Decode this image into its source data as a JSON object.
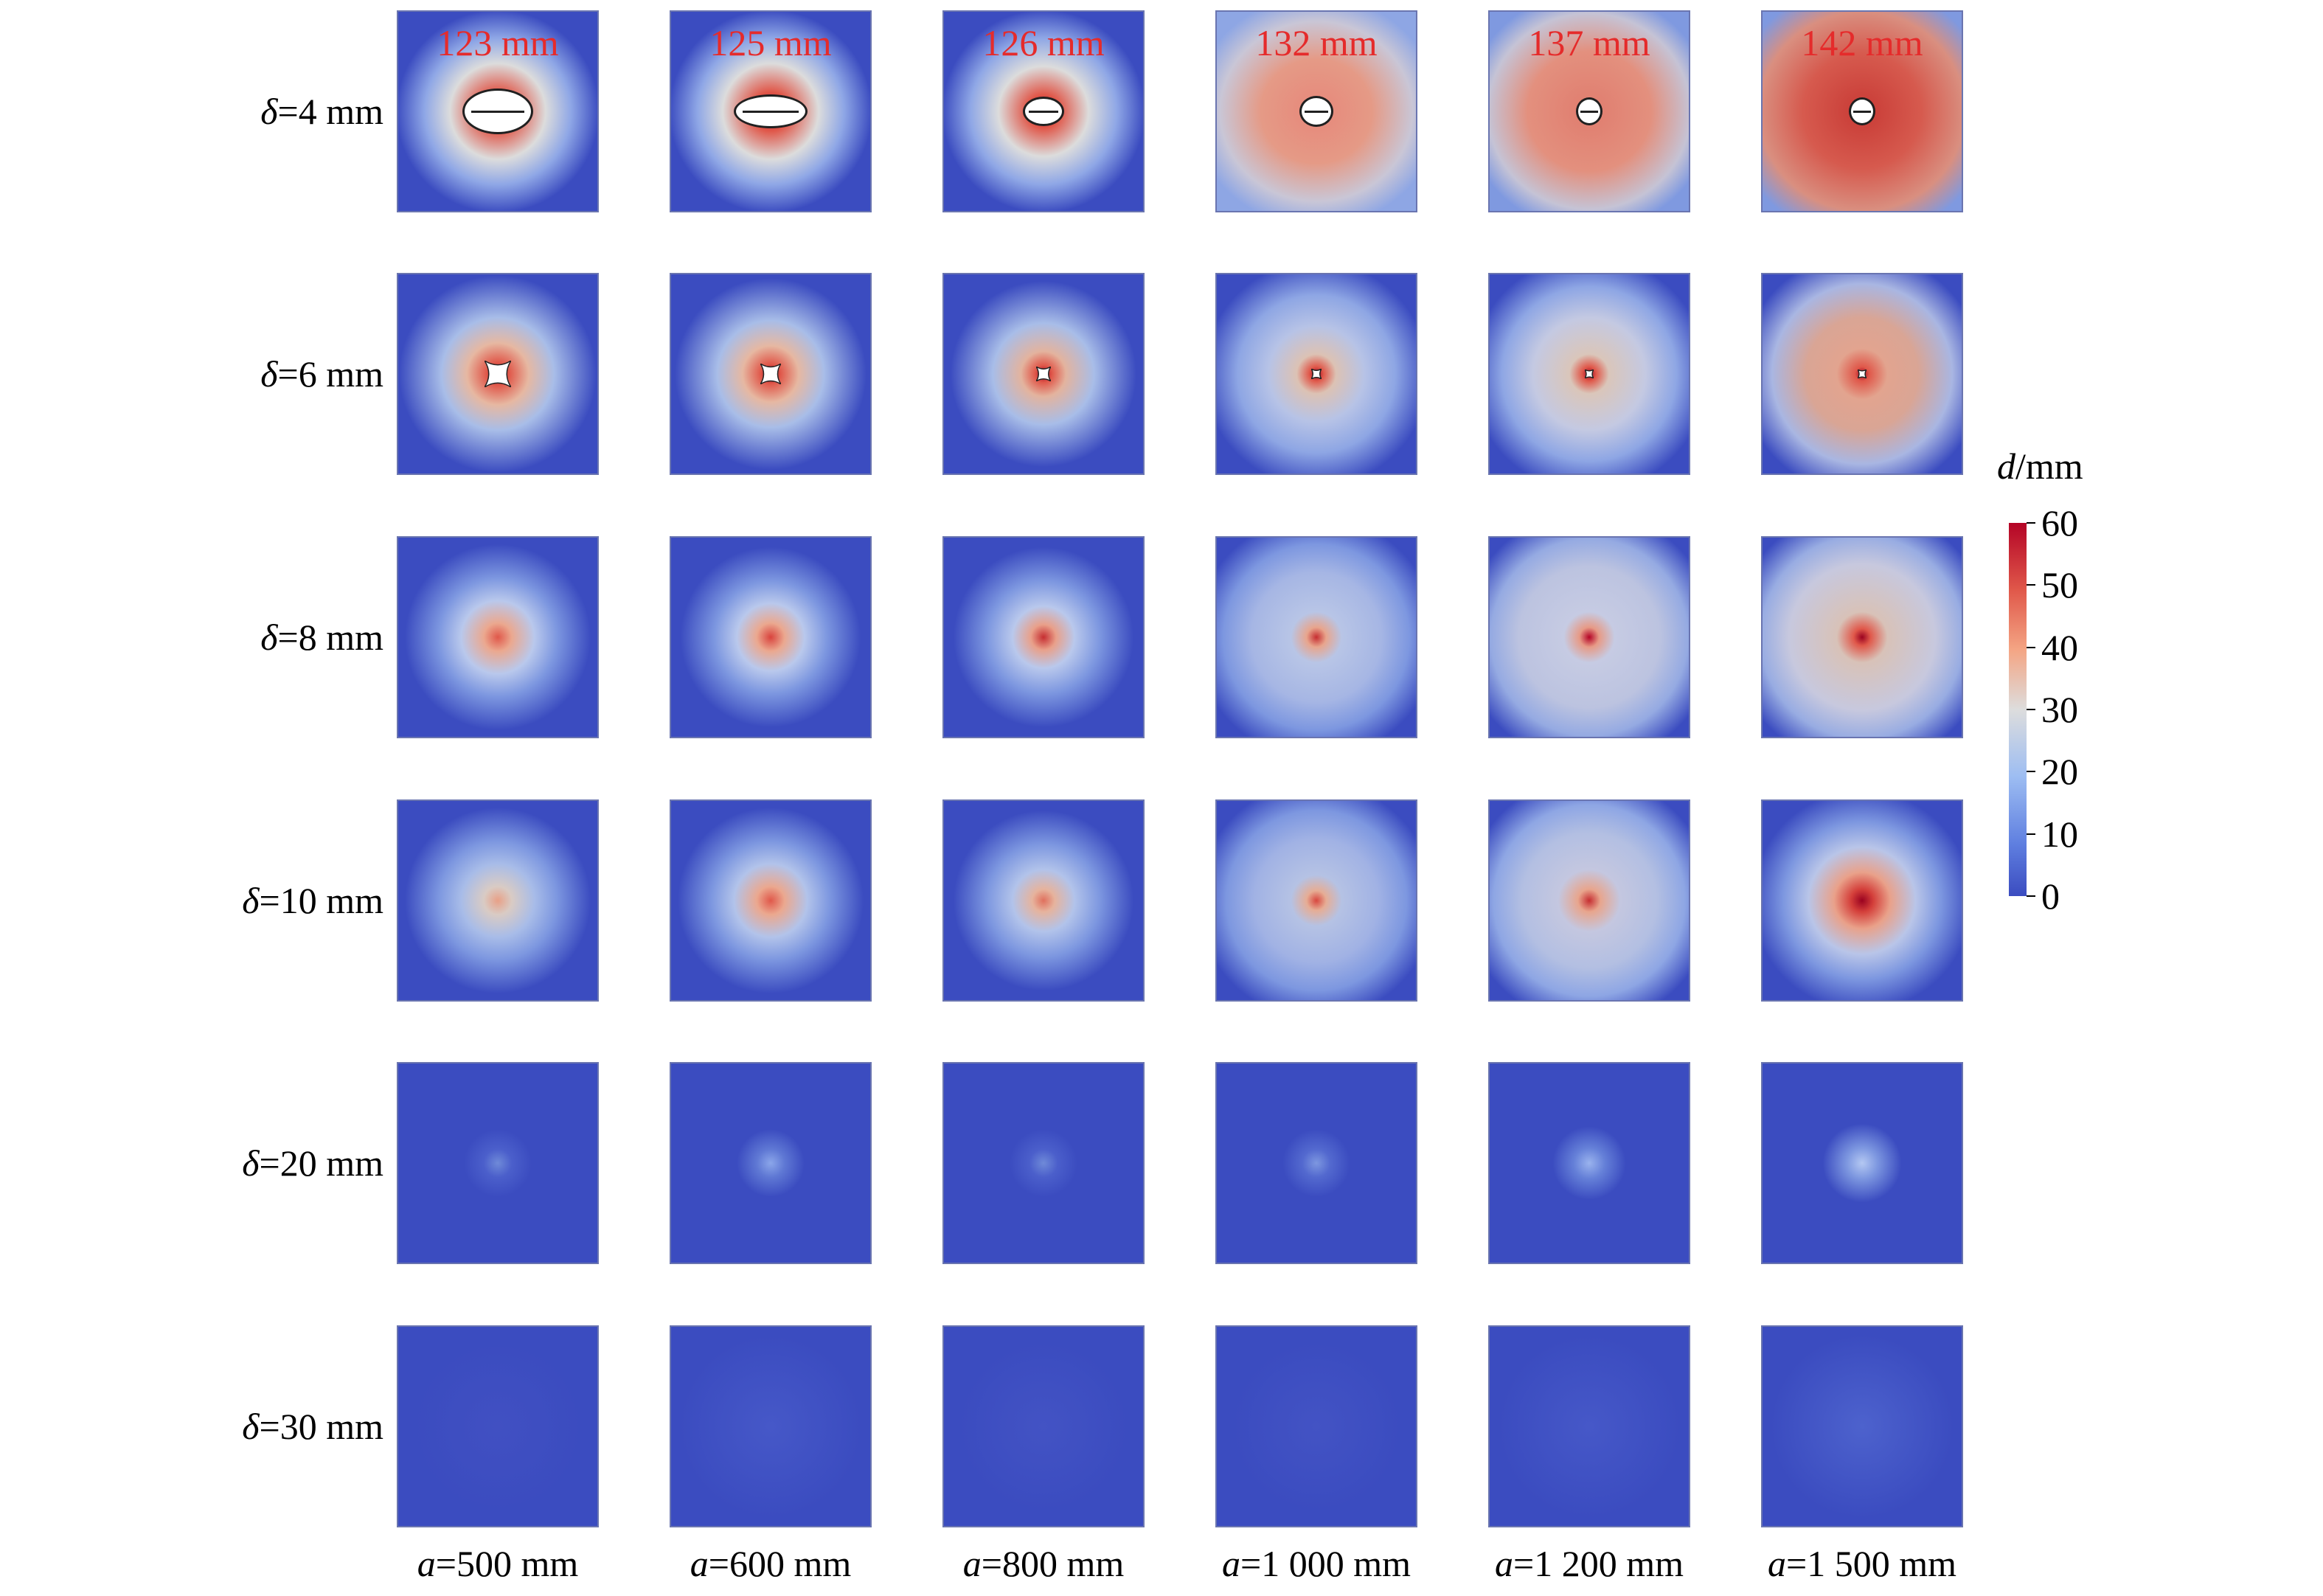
{
  "row_labels": [
    {
      "symbol": "δ",
      "rest": "=4 mm"
    },
    {
      "symbol": "δ",
      "rest": "=6 mm"
    },
    {
      "symbol": "δ",
      "rest": "=8 mm"
    },
    {
      "symbol": "δ",
      "rest": "=10 mm"
    },
    {
      "symbol": "δ",
      "rest": "=20 mm"
    },
    {
      "symbol": "δ",
      "rest": "=30 mm"
    }
  ],
  "column_labels": [
    {
      "symbol": "a",
      "rest": "=500 mm"
    },
    {
      "symbol": "a",
      "rest": "=600 mm"
    },
    {
      "symbol": "a",
      "rest": "=800 mm"
    },
    {
      "symbol": "a",
      "rest": "=1 000 mm"
    },
    {
      "symbol": "a",
      "rest": "=1 200 mm"
    },
    {
      "symbol": "a",
      "rest": "=1 500 mm"
    }
  ],
  "hole_size_labels": [
    "123 mm",
    "125 mm",
    "126 mm",
    "132 mm",
    "137 mm",
    "142 mm"
  ],
  "colorbar": {
    "title_symbol": "d",
    "title_unit": "/mm",
    "ticks": [
      "60",
      "50",
      "40",
      "30",
      "20",
      "10",
      "0"
    ],
    "min": 0,
    "max": 60,
    "colors": {
      "low": "#3b4cc0",
      "mid": "#dddddd",
      "high": "#b40426"
    }
  },
  "label_color": "#e52b2b"
}
